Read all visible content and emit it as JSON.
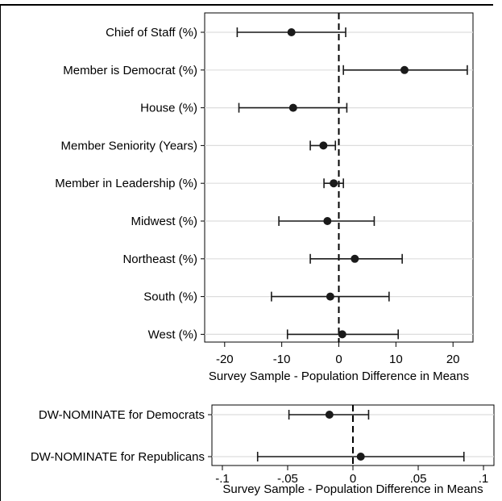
{
  "chart_data": [
    {
      "type": "scatter",
      "subtype": "coefficient-plot-with-confidence-intervals",
      "categories": [
        "Chief of Staff (%)",
        "Member is Democrat (%)",
        "House (%)",
        "Member Seniority (Years)",
        "Member in Leadership (%)",
        "Midwest (%)",
        "Northeast (%)",
        "South (%)",
        "West (%)"
      ],
      "estimates": [
        -8.3,
        11.5,
        -8.0,
        -2.7,
        -0.9,
        -2.0,
        2.8,
        -1.5,
        0.6
      ],
      "ci_low": [
        -17.8,
        0.8,
        -17.5,
        -5.0,
        -2.6,
        -10.5,
        -5.0,
        -11.8,
        -9.0
      ],
      "ci_high": [
        1.2,
        22.5,
        1.4,
        -0.6,
        0.8,
        6.2,
        11.1,
        8.8,
        10.4
      ],
      "reference_line": 0,
      "xlabel": "Survey Sample - Population Difference in Means",
      "xticks": [
        "-20",
        "-10",
        "0",
        "10",
        "20"
      ],
      "xtick_values": [
        -20,
        -10,
        0,
        10,
        20
      ],
      "xlim": [
        -23.5,
        23.5
      ],
      "grid": true
    },
    {
      "type": "scatter",
      "subtype": "coefficient-plot-with-confidence-intervals",
      "categories": [
        "DW-NOMINATE for Democrats",
        "DW-NOMINATE for Republicans"
      ],
      "estimates": [
        -0.018,
        0.006
      ],
      "ci_low": [
        -0.049,
        -0.073
      ],
      "ci_high": [
        0.012,
        0.085
      ],
      "reference_line": 0,
      "xlabel": "Survey Sample - Population Difference in Means",
      "xticks": [
        "-.1",
        "-.05",
        "0",
        ".05",
        ".1"
      ],
      "xtick_values": [
        -0.1,
        -0.05,
        0,
        0.05,
        0.1
      ],
      "xlim": [
        -0.108,
        0.108
      ],
      "grid": true
    }
  ],
  "colors": {
    "marker": "#1a1a1a",
    "gridline": "#dddddd",
    "reference_line": "#000000"
  }
}
